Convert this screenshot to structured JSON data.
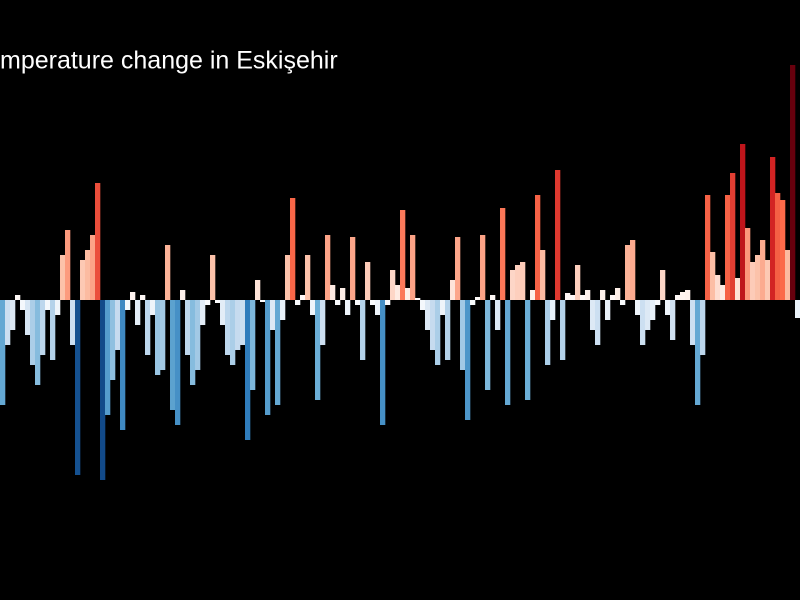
{
  "chart_data": {
    "type": "bar",
    "title": "mperature change in Eskişehir",
    "values": [
      -1.05,
      -0.45,
      -0.3,
      0.05,
      -0.1,
      -0.35,
      -0.65,
      -0.85,
      -0.55,
      -0.1,
      -0.6,
      -0.15,
      0.45,
      0.7,
      -0.45,
      -1.75,
      0.4,
      0.5,
      0.65,
      1.17,
      -1.8,
      -1.15,
      -0.8,
      -0.5,
      -1.3,
      -0.1,
      0.08,
      -0.25,
      0.05,
      -0.55,
      -0.15,
      -0.75,
      -0.7,
      0.55,
      -1.1,
      -1.25,
      0.1,
      -0.55,
      -0.85,
      -0.7,
      -0.25,
      -0.05,
      0.45,
      -0.03,
      -0.25,
      -0.55,
      -0.65,
      -0.5,
      -0.45,
      -1.4,
      -0.9,
      0.2,
      -0.02,
      -1.15,
      -0.3,
      -1.05,
      -0.2,
      0.45,
      1.02,
      -0.05,
      0.05,
      0.45,
      -0.15,
      -1.0,
      -0.45,
      0.65,
      0.15,
      -0.05,
      0.12,
      -0.15,
      0.63,
      -0.05,
      -0.6,
      0.38,
      -0.05,
      -0.15,
      -1.25,
      -0.05,
      0.3,
      0.15,
      0.9,
      0.12,
      0.65,
      0.02,
      -0.1,
      -0.3,
      -0.5,
      -0.65,
      -0.15,
      -0.6,
      0.2,
      0.63,
      -0.7,
      -1.2,
      -0.05,
      0.03,
      0.65,
      -0.9,
      0.05,
      -0.3,
      0.92,
      -1.05,
      0.3,
      0.35,
      0.38,
      -1.0,
      0.1,
      1.05,
      0.5,
      -0.65,
      -0.2,
      1.3,
      -0.6,
      0.07,
      0.05,
      0.35,
      0.05,
      0.1,
      -0.3,
      -0.45,
      0.1,
      -0.2,
      0.05,
      0.12,
      -0.05,
      0.55,
      0.6,
      -0.15,
      -0.45,
      -0.3,
      -0.2,
      -0.05,
      0.3,
      -0.15,
      -0.4,
      0.05,
      0.08,
      0.1,
      -0.45,
      -1.05,
      -0.55,
      1.05,
      0.48,
      0.25,
      0.15,
      1.05,
      1.27,
      0.22,
      1.56,
      0.72,
      0.38,
      0.45,
      0.6,
      0.4,
      1.43,
      1.07,
      1.0,
      0.5,
      2.35,
      -0.18
    ],
    "ylim": [
      -3,
      3
    ],
    "colorscale": [
      "#08306b",
      "#2171b5",
      "#6baed6",
      "#c6dbef",
      "#ffffff",
      "#fcbba1",
      "#fb6a4a",
      "#cb181d",
      "#67000d"
    ],
    "clim": [
      -2,
      2
    ]
  }
}
